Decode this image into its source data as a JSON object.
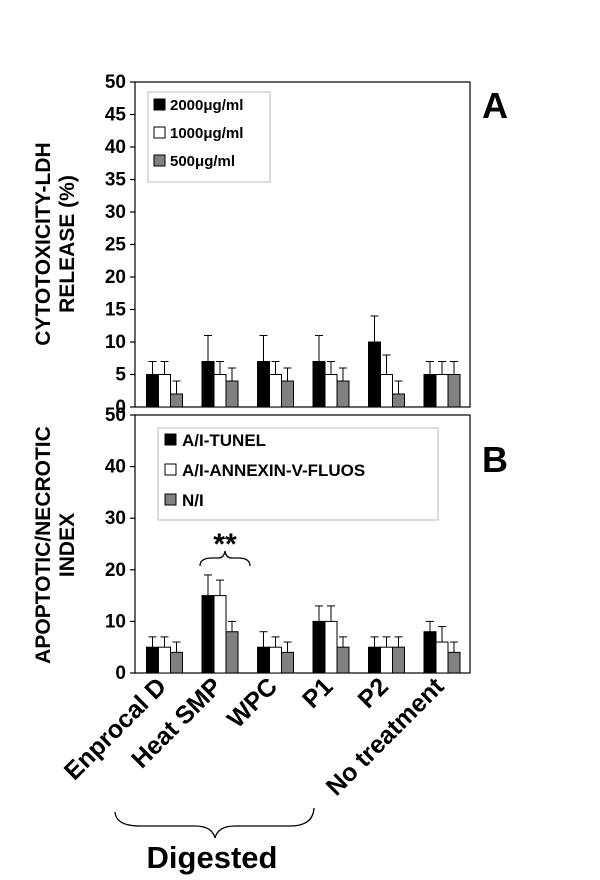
{
  "chart_data": [
    {
      "panel": "A",
      "type": "bar",
      "ylabel_lines": [
        "CYTOTOXICITY-LDH",
        "RELEASE (%)"
      ],
      "ylim": [
        0,
        50
      ],
      "yticks": [
        0,
        5,
        10,
        15,
        20,
        25,
        30,
        35,
        40,
        45,
        50
      ],
      "legend_position": "top-left",
      "categories": [
        "Enprocal D",
        "Heat SMP",
        "WPC",
        "P1",
        "P2",
        "No treatment"
      ],
      "series": [
        {
          "name": "2000μg/ml",
          "color": "#000000",
          "values": [
            5,
            7,
            7,
            7,
            10,
            5
          ],
          "errors": [
            2,
            4,
            4,
            4,
            4,
            2
          ]
        },
        {
          "name": "1000μg/ml",
          "color": "#ffffff",
          "values": [
            5,
            5,
            5,
            5,
            5,
            5
          ],
          "errors": [
            2,
            2,
            2,
            2,
            3,
            2
          ]
        },
        {
          "name": "500μg/ml",
          "color": "#808080",
          "values": [
            2,
            4,
            4,
            4,
            2,
            5
          ],
          "errors": [
            2,
            2,
            2,
            2,
            2,
            2
          ]
        }
      ]
    },
    {
      "panel": "B",
      "type": "bar",
      "ylabel_lines": [
        "APOPTOTIC/NECROTIC",
        "INDEX"
      ],
      "ylim": [
        0,
        50
      ],
      "yticks": [
        0,
        10,
        20,
        30,
        40,
        50
      ],
      "legend_position": "top-left",
      "categories": [
        "Enprocal D",
        "Heat SMP",
        "WPC",
        "P1",
        "P2",
        "No treatment"
      ],
      "series": [
        {
          "name": "A/I-TUNEL",
          "color": "#000000",
          "values": [
            5,
            15,
            5,
            10,
            5,
            8
          ],
          "errors": [
            2,
            4,
            3,
            3,
            2,
            2
          ]
        },
        {
          "name": "A/I-ANNEXIN-V-FLUOS",
          "color": "#ffffff",
          "values": [
            5,
            15,
            5,
            10,
            5,
            6
          ],
          "errors": [
            2,
            3,
            2,
            3,
            2,
            3
          ]
        },
        {
          "name": "N/I",
          "color": "#808080",
          "values": [
            4,
            8,
            4,
            5,
            5,
            4
          ],
          "errors": [
            2,
            2,
            2,
            2,
            2,
            2
          ]
        }
      ],
      "annotation": {
        "text": "**",
        "category": "Heat SMP"
      }
    }
  ],
  "group_label": "Digested"
}
